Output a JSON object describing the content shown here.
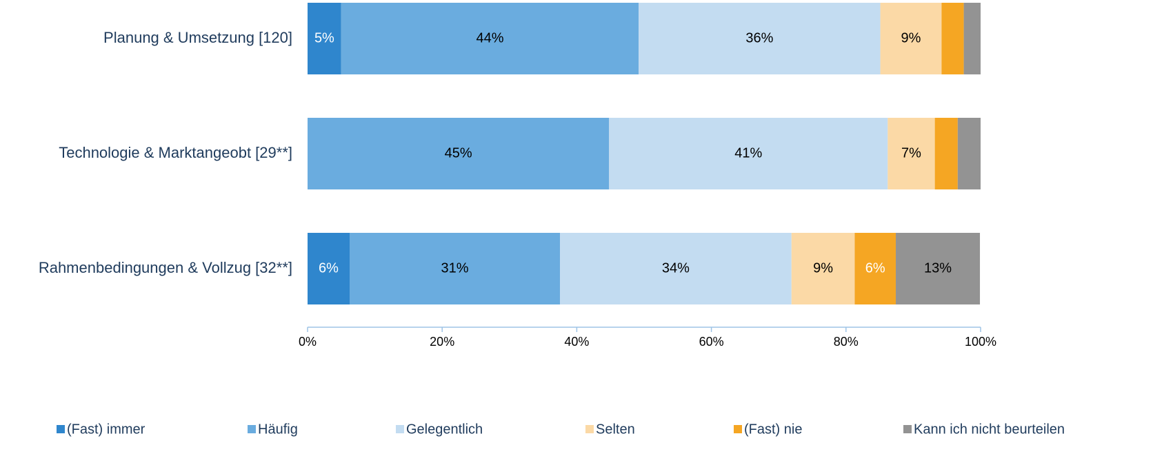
{
  "chart_data": {
    "type": "bar",
    "orientation": "horizontal",
    "stacked": true,
    "categories": [
      "Planung & Umsetzung [120]",
      "Technologie & Marktangeobt [29**]",
      "Rahmenbedingungen & Vollzug [32**]"
    ],
    "series": [
      {
        "name": "(Fast) immer",
        "color": "#2f86cd",
        "label_color": "#ffffff",
        "values": [
          5,
          0,
          6.25
        ],
        "value_labels": [
          "5%",
          null,
          "6%"
        ]
      },
      {
        "name": "Häufig",
        "color": "#6aacdf",
        "label_color": "#000000",
        "values": [
          44.2,
          44.8,
          31.25
        ],
        "value_labels": [
          "44%",
          "45%",
          "31%"
        ]
      },
      {
        "name": "Gelegentlich",
        "color": "#c3dcf1",
        "label_color": "#000000",
        "values": [
          35.9,
          41.4,
          34.4
        ],
        "value_labels": [
          "36%",
          "41%",
          "34%"
        ]
      },
      {
        "name": "Selten",
        "color": "#fbd9a6",
        "label_color": "#000000",
        "values": [
          9.1,
          7.0,
          9.4
        ],
        "value_labels": [
          "9%",
          "7%",
          "9%"
        ]
      },
      {
        "name": "(Fast) nie",
        "color": "#f5a623",
        "label_color": "#ffffff",
        "values": [
          3.3,
          3.4,
          6.1
        ],
        "value_labels": [
          null,
          null,
          "6%"
        ]
      },
      {
        "name": "Kann ich nicht beurteilen",
        "color": "#939393",
        "label_color": "#000000",
        "values": [
          2.5,
          3.4,
          12.5
        ],
        "value_labels": [
          null,
          null,
          "13%"
        ]
      }
    ],
    "xlim": [
      0,
      100
    ],
    "xticks": [
      {
        "value": 0,
        "label": "0%"
      },
      {
        "value": 20,
        "label": "20%"
      },
      {
        "value": 40,
        "label": "40%"
      },
      {
        "value": 60,
        "label": "60%"
      },
      {
        "value": 80,
        "label": "80%"
      },
      {
        "value": 100,
        "label": "100%"
      }
    ],
    "legend": "bottom"
  }
}
